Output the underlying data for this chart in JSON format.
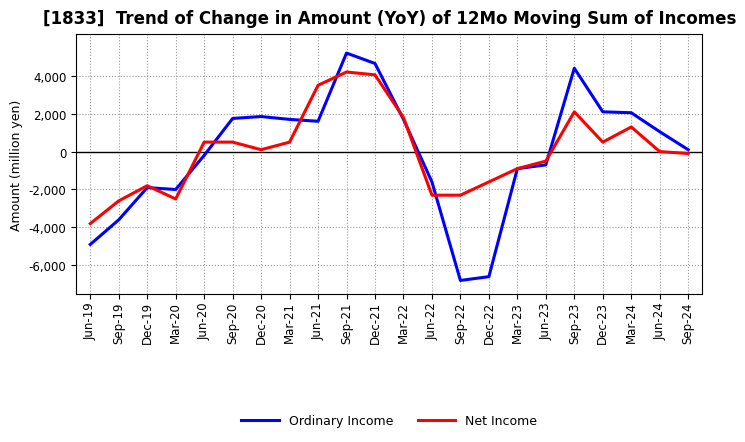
{
  "title": "[1833]  Trend of Change in Amount (YoY) of 12Mo Moving Sum of Incomes",
  "ylabel": "Amount (million yen)",
  "x_labels": [
    "Jun-19",
    "Sep-19",
    "Dec-19",
    "Mar-20",
    "Jun-20",
    "Sep-20",
    "Dec-20",
    "Mar-21",
    "Jun-21",
    "Sep-21",
    "Dec-21",
    "Mar-22",
    "Jun-22",
    "Sep-22",
    "Dec-22",
    "Mar-23",
    "Jun-23",
    "Sep-23",
    "Dec-23",
    "Mar-24",
    "Jun-24",
    "Sep-24"
  ],
  "ordinary_income": [
    -4900,
    -3600,
    -1900,
    -2000,
    -200,
    1750,
    1850,
    1700,
    1600,
    5200,
    4650,
    1700,
    -1600,
    -6800,
    -6600,
    -900,
    -700,
    4400,
    2100,
    2050,
    1050,
    100
  ],
  "net_income": [
    -3800,
    -2600,
    -1800,
    -2500,
    500,
    500,
    100,
    500,
    3500,
    4200,
    4050,
    1800,
    -2300,
    -2300,
    -1600,
    -900,
    -500,
    2100,
    500,
    1300,
    0,
    -100
  ],
  "ordinary_income_color": "#0000ff",
  "net_income_color": "#ff0000",
  "ylim": [
    -7500,
    6200
  ],
  "yticks": [
    -6000,
    -4000,
    -2000,
    0,
    2000,
    4000
  ],
  "grid_color": "#999999",
  "background_color": "#ffffff",
  "legend_ordinary": "Ordinary Income",
  "legend_net": "Net Income",
  "line_width": 2.2,
  "title_fontsize": 12,
  "ylabel_fontsize": 9,
  "tick_fontsize": 8.5
}
